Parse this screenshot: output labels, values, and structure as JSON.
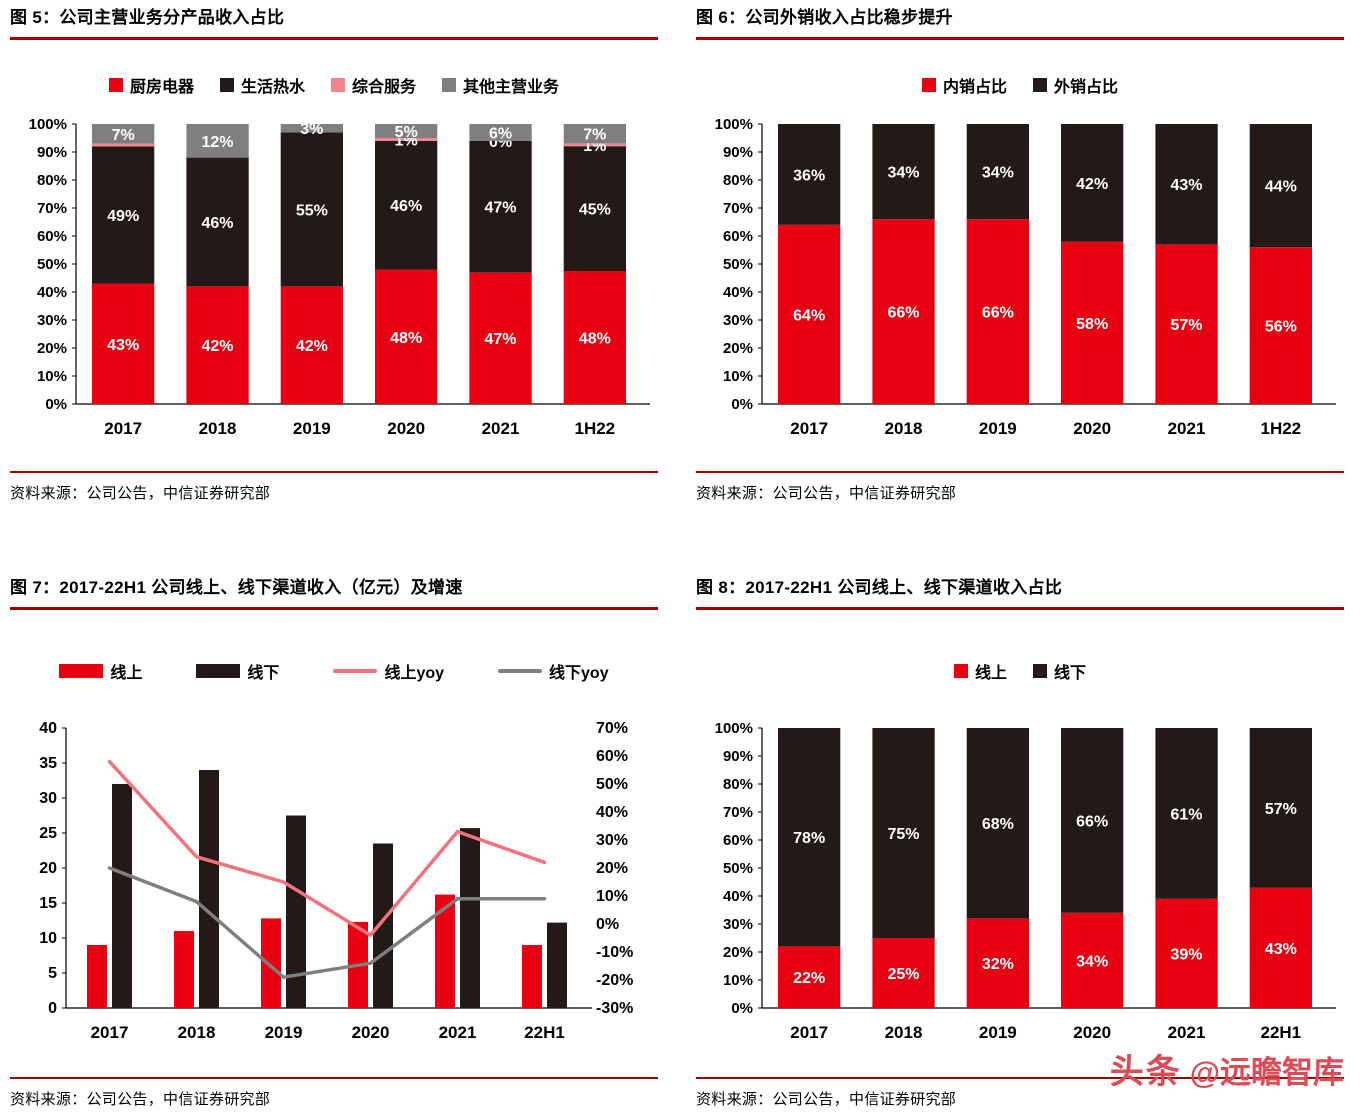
{
  "page": {
    "source_text": "资料来源：公司公告，中信证券研究部",
    "watermark": {
      "logo": "头条",
      "handle": "@远瞻智库"
    },
    "accent_red": "#a40000",
    "label_color_on_bars": "#ffffff"
  },
  "chart_data": [
    {
      "id": "fig5",
      "type": "stacked-bar",
      "title": "图 5：公司主营业务分产品收入占比",
      "legend_position": "top",
      "grid": false,
      "categories": [
        "2017",
        "2018",
        "2019",
        "2020",
        "2021",
        "1H22"
      ],
      "y_axis": {
        "min": 0,
        "max": 100,
        "step": 10,
        "format": "percent"
      },
      "series": [
        {
          "name": "厨房电器",
          "color": "#e60012",
          "values": [
            43,
            42,
            42,
            48,
            47,
            48
          ],
          "labels": [
            "43%",
            "42%",
            "42%",
            "48%",
            "47%",
            "48%"
          ]
        },
        {
          "name": "生活热水",
          "color": "#231916",
          "values": [
            49,
            46,
            55,
            46,
            47,
            45
          ],
          "labels": [
            "49%",
            "46%",
            "55%",
            "46%",
            "47%",
            "45%"
          ]
        },
        {
          "name": "综合服务",
          "color": "#f2858e",
          "values": [
            1,
            0,
            0,
            1,
            0,
            1
          ],
          "labels": [
            null,
            null,
            null,
            "1%",
            "0%",
            "1%"
          ]
        },
        {
          "name": "其他主营业务",
          "color": "#7f7f7f",
          "values": [
            7,
            12,
            3,
            5,
            6,
            7
          ],
          "labels": [
            "7%",
            "12%",
            "3%",
            "5%",
            "6%",
            "7%"
          ]
        }
      ]
    },
    {
      "id": "fig6",
      "type": "stacked-bar",
      "title": "图 6：公司外销收入占比稳步提升",
      "legend_position": "top",
      "grid": false,
      "categories": [
        "2017",
        "2018",
        "2019",
        "2020",
        "2021",
        "1H22"
      ],
      "y_axis": {
        "min": 0,
        "max": 100,
        "step": 10,
        "format": "percent"
      },
      "series": [
        {
          "name": "内销占比",
          "color": "#e60012",
          "values": [
            64,
            66,
            66,
            58,
            57,
            56
          ],
          "labels": [
            "64%",
            "66%",
            "66%",
            "58%",
            "57%",
            "56%"
          ]
        },
        {
          "name": "外销占比",
          "color": "#231916",
          "values": [
            36,
            34,
            34,
            42,
            43,
            44
          ],
          "labels": [
            "36%",
            "34%",
            "34%",
            "42%",
            "43%",
            "44%"
          ]
        }
      ]
    },
    {
      "id": "fig7",
      "type": "combo",
      "title": "图 7：2017-22H1 公司线上、线下渠道收入（亿元）及增速",
      "legend_position": "top",
      "grid": false,
      "categories": [
        "2017",
        "2018",
        "2019",
        "2020",
        "2021",
        "22H1"
      ],
      "left_axis": {
        "min": 0,
        "max": 40,
        "step": 5
      },
      "right_axis": {
        "min": -30,
        "max": 70,
        "step": 10,
        "format": "percent"
      },
      "bar_series": [
        {
          "name": "线上",
          "color": "#e60012",
          "values": [
            9,
            11,
            12.8,
            12.3,
            16.2,
            9
          ]
        },
        {
          "name": "线下",
          "color": "#231916",
          "values": [
            32,
            34,
            27.5,
            23.5,
            25.7,
            12.2
          ]
        }
      ],
      "line_series": [
        {
          "name": "线上yoy",
          "color": "#f4727e",
          "values": [
            58,
            24,
            15,
            -4,
            33,
            22
          ]
        },
        {
          "name": "线下yoy",
          "color": "#7f7f7f",
          "values": [
            20,
            8,
            -19,
            -14,
            9,
            9
          ]
        }
      ]
    },
    {
      "id": "fig8",
      "type": "stacked-bar",
      "title": "图 8：2017-22H1 公司线上、线下渠道收入占比",
      "legend_position": "top",
      "grid": false,
      "categories": [
        "2017",
        "2018",
        "2019",
        "2020",
        "2021",
        "22H1"
      ],
      "y_axis": {
        "min": 0,
        "max": 100,
        "step": 10,
        "format": "percent"
      },
      "series": [
        {
          "name": "线上",
          "color": "#e60012",
          "values": [
            22,
            25,
            32,
            34,
            39,
            43
          ],
          "labels": [
            "22%",
            "25%",
            "32%",
            "34%",
            "39%",
            "43%"
          ]
        },
        {
          "name": "线下",
          "color": "#231916",
          "values": [
            78,
            75,
            68,
            66,
            61,
            57
          ],
          "labels": [
            "78%",
            "75%",
            "68%",
            "66%",
            "61%",
            "57%"
          ]
        }
      ]
    }
  ]
}
